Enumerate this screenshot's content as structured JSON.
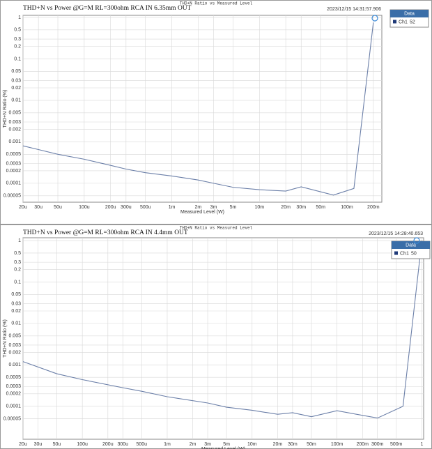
{
  "chart_data": [
    {
      "type": "line",
      "header": "THD+N Ratio vs Measured Level",
      "title": "THD+N vs Power @G=M RL=300ohm RCA IN 6.35mm OUT",
      "timestamp": "2023/12/15 14:31:57.906",
      "xlabel": "Measured Level (W)",
      "ylabel": "THD+N Ratio (%)",
      "legend_title": "Data",
      "log_x": true,
      "log_y": true,
      "grid": true,
      "xlim": [
        2e-05,
        0.25
      ],
      "ylim": [
        3.5e-05,
        1.12
      ],
      "xticks": [
        {
          "value": 2e-05,
          "label": "20u"
        },
        {
          "value": 3e-05,
          "label": "30u"
        },
        {
          "value": 5e-05,
          "label": "50u"
        },
        {
          "value": 0.0001,
          "label": "100u"
        },
        {
          "value": 0.0002,
          "label": "200u"
        },
        {
          "value": 0.0003,
          "label": "300u"
        },
        {
          "value": 0.0005,
          "label": "500u"
        },
        {
          "value": 0.001,
          "label": "1m"
        },
        {
          "value": 0.002,
          "label": "2m"
        },
        {
          "value": 0.003,
          "label": "3m"
        },
        {
          "value": 0.005,
          "label": "5m"
        },
        {
          "value": 0.01,
          "label": "10m"
        },
        {
          "value": 0.02,
          "label": "20m"
        },
        {
          "value": 0.03,
          "label": "30m"
        },
        {
          "value": 0.05,
          "label": "50m"
        },
        {
          "value": 0.1,
          "label": "100m"
        },
        {
          "value": 0.2,
          "label": "200m"
        }
      ],
      "yticks": [
        1,
        0.5,
        0.3,
        0.2,
        0.1,
        0.05,
        0.03,
        0.02,
        0.01,
        0.005,
        0.003,
        0.002,
        0.001,
        0.0005,
        0.0003,
        0.0002,
        0.0001,
        5e-05
      ],
      "x": [
        2e-05,
        3e-05,
        5e-05,
        0.0001,
        0.0002,
        0.0003,
        0.0005,
        0.001,
        0.002,
        0.003,
        0.005,
        0.01,
        0.02,
        0.03,
        0.07,
        0.12,
        0.2
      ],
      "series": [
        {
          "name": "Ch1",
          "tag": "52",
          "color": "#6b7fa8",
          "values": [
            0.0008,
            0.00065,
            0.0005,
            0.00038,
            0.00027,
            0.00022,
            0.00018,
            0.00015,
            0.00012,
            0.0001,
            8e-05,
            7e-05,
            6.5e-05,
            8.2e-05,
            5.2e-05,
            7.5e-05,
            0.75
          ]
        }
      ]
    },
    {
      "type": "line",
      "header": "THD+N Ratio vs Measured Level",
      "title": "THD+N vs Power @G=M RL=300ohm RCA IN 4.4mm OUT",
      "timestamp": "2023/12/15 14:28:40.653",
      "xlabel": "Measured Level (W)",
      "ylabel": "THD+N Ratio (%)",
      "legend_title": "Data",
      "log_x": true,
      "log_y": true,
      "grid": true,
      "xlim": [
        2e-05,
        1.05
      ],
      "ylim": [
        1.6e-05,
        1.17
      ],
      "xticks": [
        {
          "value": 2e-05,
          "label": "20u"
        },
        {
          "value": 3e-05,
          "label": "30u"
        },
        {
          "value": 5e-05,
          "label": "50u"
        },
        {
          "value": 0.0001,
          "label": "100u"
        },
        {
          "value": 0.0002,
          "label": "200u"
        },
        {
          "value": 0.0003,
          "label": "300u"
        },
        {
          "value": 0.0005,
          "label": "500u"
        },
        {
          "value": 0.001,
          "label": "1m"
        },
        {
          "value": 0.002,
          "label": "2m"
        },
        {
          "value": 0.003,
          "label": "3m"
        },
        {
          "value": 0.005,
          "label": "5m"
        },
        {
          "value": 0.01,
          "label": "10m"
        },
        {
          "value": 0.02,
          "label": "20m"
        },
        {
          "value": 0.03,
          "label": "30m"
        },
        {
          "value": 0.05,
          "label": "50m"
        },
        {
          "value": 0.1,
          "label": "100m"
        },
        {
          "value": 0.2,
          "label": "200m"
        },
        {
          "value": 0.3,
          "label": "300m"
        },
        {
          "value": 0.5,
          "label": "500m"
        },
        1
      ],
      "yticks": [
        1,
        0.5,
        0.3,
        0.2,
        0.1,
        0.05,
        0.03,
        0.02,
        0.01,
        0.005,
        0.003,
        0.002,
        0.001,
        0.0005,
        0.0003,
        0.0002,
        0.0001,
        5e-05
      ],
      "x": [
        2e-05,
        5e-05,
        0.0001,
        0.0003,
        0.0005,
        0.001,
        0.003,
        0.005,
        0.01,
        0.02,
        0.03,
        0.05,
        0.1,
        0.3,
        0.6,
        1
      ],
      "series": [
        {
          "name": "Ch1",
          "tag": "50",
          "color": "#6b7fa8",
          "values": [
            0.0012,
            0.00061,
            0.00044,
            0.00028,
            0.00023,
            0.00017,
            0.00012,
            9.5e-05,
            8e-05,
            6.4e-05,
            7e-05,
            5.6e-05,
            7.8e-05,
            5.2e-05,
            0.0001,
            1
          ]
        }
      ]
    }
  ]
}
